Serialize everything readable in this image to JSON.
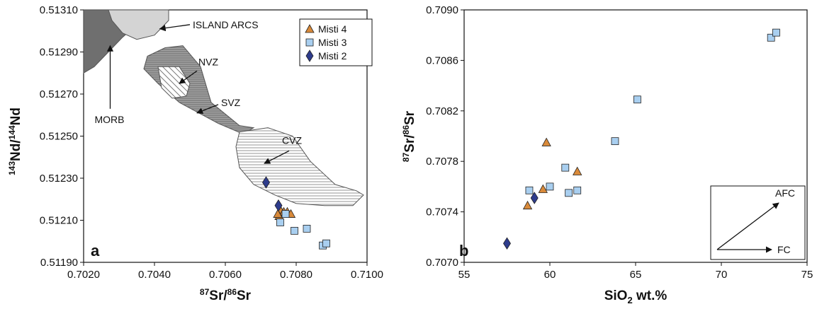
{
  "chart_data": [
    {
      "type": "scatter",
      "panel_label": "a",
      "xlabel": {
        "sup1": "87",
        "base1": "Sr/",
        "sup2": "86",
        "base2": "Sr"
      },
      "ylabel": {
        "sup1": "143",
        "base1": "Nd/",
        "sup2": "144",
        "base2": "Nd"
      },
      "xlim": [
        0.702,
        0.71
      ],
      "ylim": [
        0.5119,
        0.5131
      ],
      "xticks": [
        "0.7020",
        "0.7040",
        "0.7060",
        "0.7080",
        "0.7100"
      ],
      "yticks": [
        "0.51190",
        "0.51210",
        "0.51230",
        "0.51250",
        "0.51270",
        "0.51290",
        "0.51310"
      ],
      "legend_position": "top-right",
      "series": [
        {
          "name": "Misti 4",
          "marker": "triangle",
          "color": "#d98a3a",
          "points": [
            [
              0.70755,
              0.51215
            ],
            [
              0.70765,
              0.51214
            ],
            [
              0.70752,
              0.51212
            ],
            [
              0.70775,
              0.51214
            ],
            [
              0.70785,
              0.51213
            ],
            [
              0.70748,
              0.51213
            ]
          ]
        },
        {
          "name": "Misti 3",
          "marker": "square",
          "color": "#a9cff0",
          "points": [
            [
              0.70755,
              0.51209
            ],
            [
              0.70795,
              0.51205
            ],
            [
              0.7083,
              0.51206
            ],
            [
              0.70875,
              0.51198
            ],
            [
              0.70885,
              0.51199
            ],
            [
              0.7077,
              0.51213
            ]
          ]
        },
        {
          "name": "Misti 2",
          "marker": "diamond",
          "color": "#2e3c8c",
          "points": [
            [
              0.70715,
              0.51228
            ],
            [
              0.7075,
              0.51217
            ]
          ]
        }
      ],
      "fields": [
        {
          "name": "MORB",
          "fill": "#6f6f6f",
          "hatch": "none",
          "polygon": [
            [
              0.702,
              0.5131
            ],
            [
              0.7036,
              0.5131
            ],
            [
              0.7035,
              0.51303
            ],
            [
              0.7031,
              0.51297
            ],
            [
              0.7027,
              0.5129
            ],
            [
              0.7023,
              0.51283
            ],
            [
              0.702,
              0.5128
            ]
          ]
        },
        {
          "name": "ISLAND ARCS",
          "fill": "#d4d4d4",
          "hatch": "none",
          "polygon": [
            [
              0.7027,
              0.5131
            ],
            [
              0.7044,
              0.5131
            ],
            [
              0.7044,
              0.51305
            ],
            [
              0.704,
              0.51298
            ],
            [
              0.7035,
              0.51296
            ],
            [
              0.7031,
              0.51299
            ],
            [
              0.7028,
              0.51305
            ]
          ]
        },
        {
          "name": "SVZ",
          "fill": "#9a9a9a",
          "hatch": "dense",
          "polygon": [
            [
              0.7038,
              0.51288
            ],
            [
              0.7043,
              0.51292
            ],
            [
              0.7048,
              0.51293
            ],
            [
              0.7053,
              0.51283
            ],
            [
              0.7056,
              0.51266
            ],
            [
              0.7064,
              0.51255
            ],
            [
              0.7068,
              0.51254
            ],
            [
              0.7065,
              0.51251
            ],
            [
              0.7058,
              0.51256
            ],
            [
              0.7047,
              0.51266
            ],
            [
              0.7041,
              0.51275
            ],
            [
              0.7037,
              0.51282
            ]
          ]
        },
        {
          "name": "NVZ",
          "fill": "#ffffff",
          "hatch": "diagonal",
          "polygon": [
            [
              0.7041,
              0.51283
            ],
            [
              0.7047,
              0.51283
            ],
            [
              0.705,
              0.51275
            ],
            [
              0.7049,
              0.51269
            ],
            [
              0.7045,
              0.51268
            ],
            [
              0.7042,
              0.51273
            ]
          ]
        },
        {
          "name": "CVZ",
          "fill": "#ffffff",
          "hatch": "horizontal",
          "polygon": [
            [
              0.7064,
              0.51252
            ],
            [
              0.7072,
              0.51254
            ],
            [
              0.7079,
              0.5125
            ],
            [
              0.7084,
              0.51238
            ],
            [
              0.7091,
              0.51227
            ],
            [
              0.7097,
              0.51224
            ],
            [
              0.7099,
              0.51222
            ],
            [
              0.7096,
              0.51217
            ],
            [
              0.7088,
              0.51217
            ],
            [
              0.708,
              0.51218
            ],
            [
              0.7074,
              0.51222
            ],
            [
              0.7068,
              0.51227
            ],
            [
              0.7064,
              0.51235
            ],
            [
              0.7063,
              0.51245
            ]
          ]
        }
      ],
      "annotations": [
        {
          "text": "ISLAND ARCS",
          "arrow_from": [
            0.705,
            0.51303
          ],
          "arrow_to": [
            0.70415,
            0.51301
          ]
        },
        {
          "text": "MORB",
          "arrow_from": [
            0.70275,
            0.51263
          ],
          "arrow_to": [
            0.70275,
            0.51293
          ]
        },
        {
          "text": "NVZ",
          "arrow_from": [
            0.7052,
            0.51281
          ],
          "arrow_to": [
            0.7047,
            0.51275
          ]
        },
        {
          "text": "SVZ",
          "arrow_from": [
            0.7058,
            0.51265
          ],
          "arrow_to": [
            0.7052,
            0.51261
          ]
        },
        {
          "text": "CVZ",
          "arrow_from": [
            0.7078,
            0.51243
          ],
          "arrow_to": [
            0.7071,
            0.51237
          ]
        }
      ]
    },
    {
      "type": "scatter",
      "panel_label": "b",
      "xlabel": {
        "base1": "SiO",
        "sub": "2",
        "base2": " wt.%"
      },
      "ylabel": {
        "sup1": "87",
        "base1": "Sr/",
        "sup2": "86",
        "base2": "Sr"
      },
      "xlim": [
        55,
        75
      ],
      "ylim": [
        0.707,
        0.709
      ],
      "xticks": [
        "55",
        "60",
        "65",
        "70",
        "75"
      ],
      "yticks": [
        "0.7070",
        "0.7074",
        "0.7078",
        "0.7082",
        "0.7086",
        "0.7090"
      ],
      "series": [
        {
          "name": "Misti 4",
          "marker": "triangle",
          "color": "#d98a3a",
          "points": [
            [
              58.7,
              0.70745
            ],
            [
              59.6,
              0.70758
            ],
            [
              59.8,
              0.70795
            ],
            [
              61.6,
              0.70772
            ]
          ]
        },
        {
          "name": "Misti 3",
          "marker": "square",
          "color": "#a9cff0",
          "points": [
            [
              58.8,
              0.70757
            ],
            [
              60.0,
              0.7076
            ],
            [
              60.9,
              0.70775
            ],
            [
              61.1,
              0.70755
            ],
            [
              61.6,
              0.70757
            ],
            [
              63.8,
              0.70796
            ],
            [
              65.1,
              0.70829
            ],
            [
              72.9,
              0.70878
            ],
            [
              73.2,
              0.70882
            ]
          ]
        },
        {
          "name": "Misti 2",
          "marker": "diamond",
          "color": "#2e3c8c",
          "points": [
            [
              57.5,
              0.70715
            ],
            [
              59.1,
              0.70751
            ]
          ]
        }
      ],
      "inset": {
        "labels": [
          "AFC",
          "FC"
        ]
      }
    }
  ]
}
